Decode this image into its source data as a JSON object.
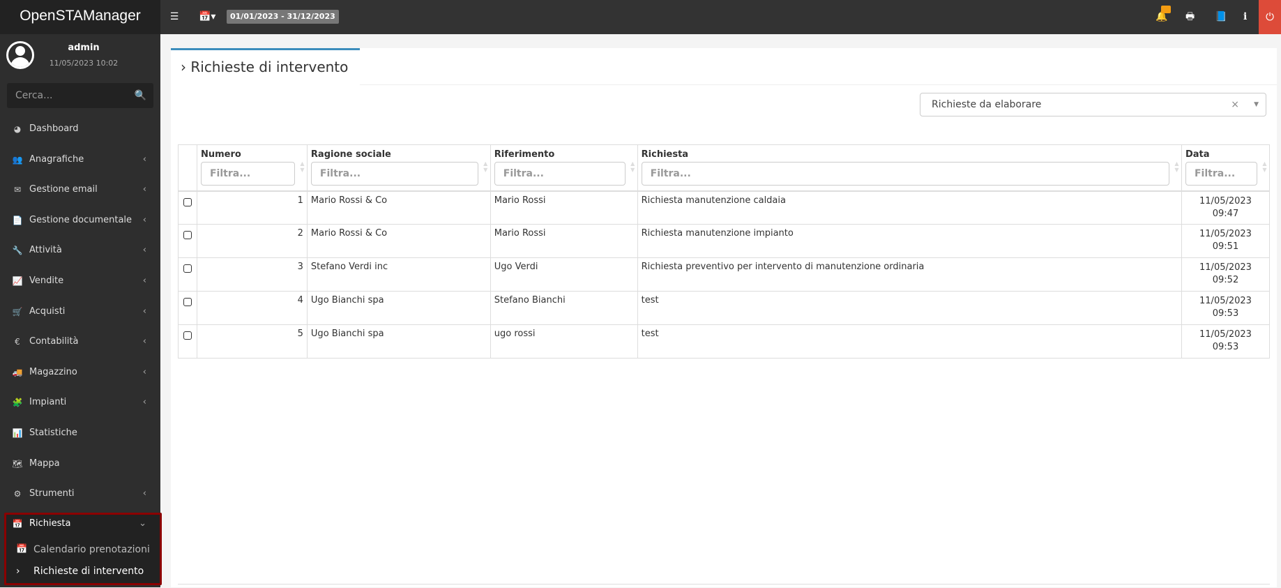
{
  "app": {
    "title": "OpenSTAManager",
    "date_range": "01/01/2023 - 31/12/2023"
  },
  "topbar": {
    "icons": [
      "menu-icon",
      "calendar-icon",
      "bell-icon",
      "print-icon",
      "book-icon",
      "info-icon",
      "power-icon"
    ],
    "accent": "#dd4b39"
  },
  "user": {
    "name": "admin",
    "datetime": "11/05/2023 10:02"
  },
  "search": {
    "placeholder": "Cerca..."
  },
  "sidebar": {
    "items": [
      {
        "label": "Dashboard",
        "icon": "dashboard-icon"
      },
      {
        "label": "Anagrafiche",
        "icon": "users-icon"
      },
      {
        "label": "Gestione email",
        "icon": "envelope-icon"
      },
      {
        "label": "Gestione documentale",
        "icon": "file-icon"
      },
      {
        "label": "Attività",
        "icon": "wrench-icon"
      },
      {
        "label": "Vendite",
        "icon": "line-chart-icon"
      },
      {
        "label": "Acquisti",
        "icon": "cart-icon"
      },
      {
        "label": "Contabilità",
        "icon": "euro-icon"
      },
      {
        "label": "Magazzino",
        "icon": "truck-icon"
      },
      {
        "label": "Impianti",
        "icon": "puzzle-icon"
      },
      {
        "label": "Statistiche",
        "icon": "bar-chart-icon"
      },
      {
        "label": "Mappa",
        "icon": "map-icon"
      },
      {
        "label": "Strumenti",
        "icon": "cog-icon"
      },
      {
        "label": "Richiesta",
        "icon": "calendar-icon"
      }
    ],
    "subitems": [
      {
        "label": "Calendario prenotazioni"
      },
      {
        "label": "Richieste di intervento"
      }
    ]
  },
  "page": {
    "title": "Richieste di intervento",
    "filter_select": "Richieste da elaborare"
  },
  "table": {
    "filter_placeholder": "Filtra...",
    "columns": [
      "Numero",
      "Ragione sociale",
      "Riferimento",
      "Richiesta",
      "Data"
    ],
    "rows": [
      [
        "1",
        "Mario Rossi & Co",
        "Mario Rossi",
        "Richiesta manutenzione caldaia",
        "11/05/2023",
        "09:47"
      ],
      [
        "2",
        "Mario Rossi & Co",
        "Mario Rossi",
        "Richiesta manutenzione impianto",
        "11/05/2023",
        "09:51"
      ],
      [
        "3",
        "Stefano Verdi inc",
        "Ugo Verdi",
        "Richiesta preventivo per intervento di manutenzione ordinaria",
        "11/05/2023",
        "09:52"
      ],
      [
        "4",
        "Ugo Bianchi spa",
        "Stefano Bianchi",
        "test",
        "11/05/2023",
        "09:53"
      ],
      [
        "5",
        "Ugo Bianchi spa",
        "ugo rossi",
        "test",
        "11/05/2023",
        "09:53"
      ]
    ]
  }
}
